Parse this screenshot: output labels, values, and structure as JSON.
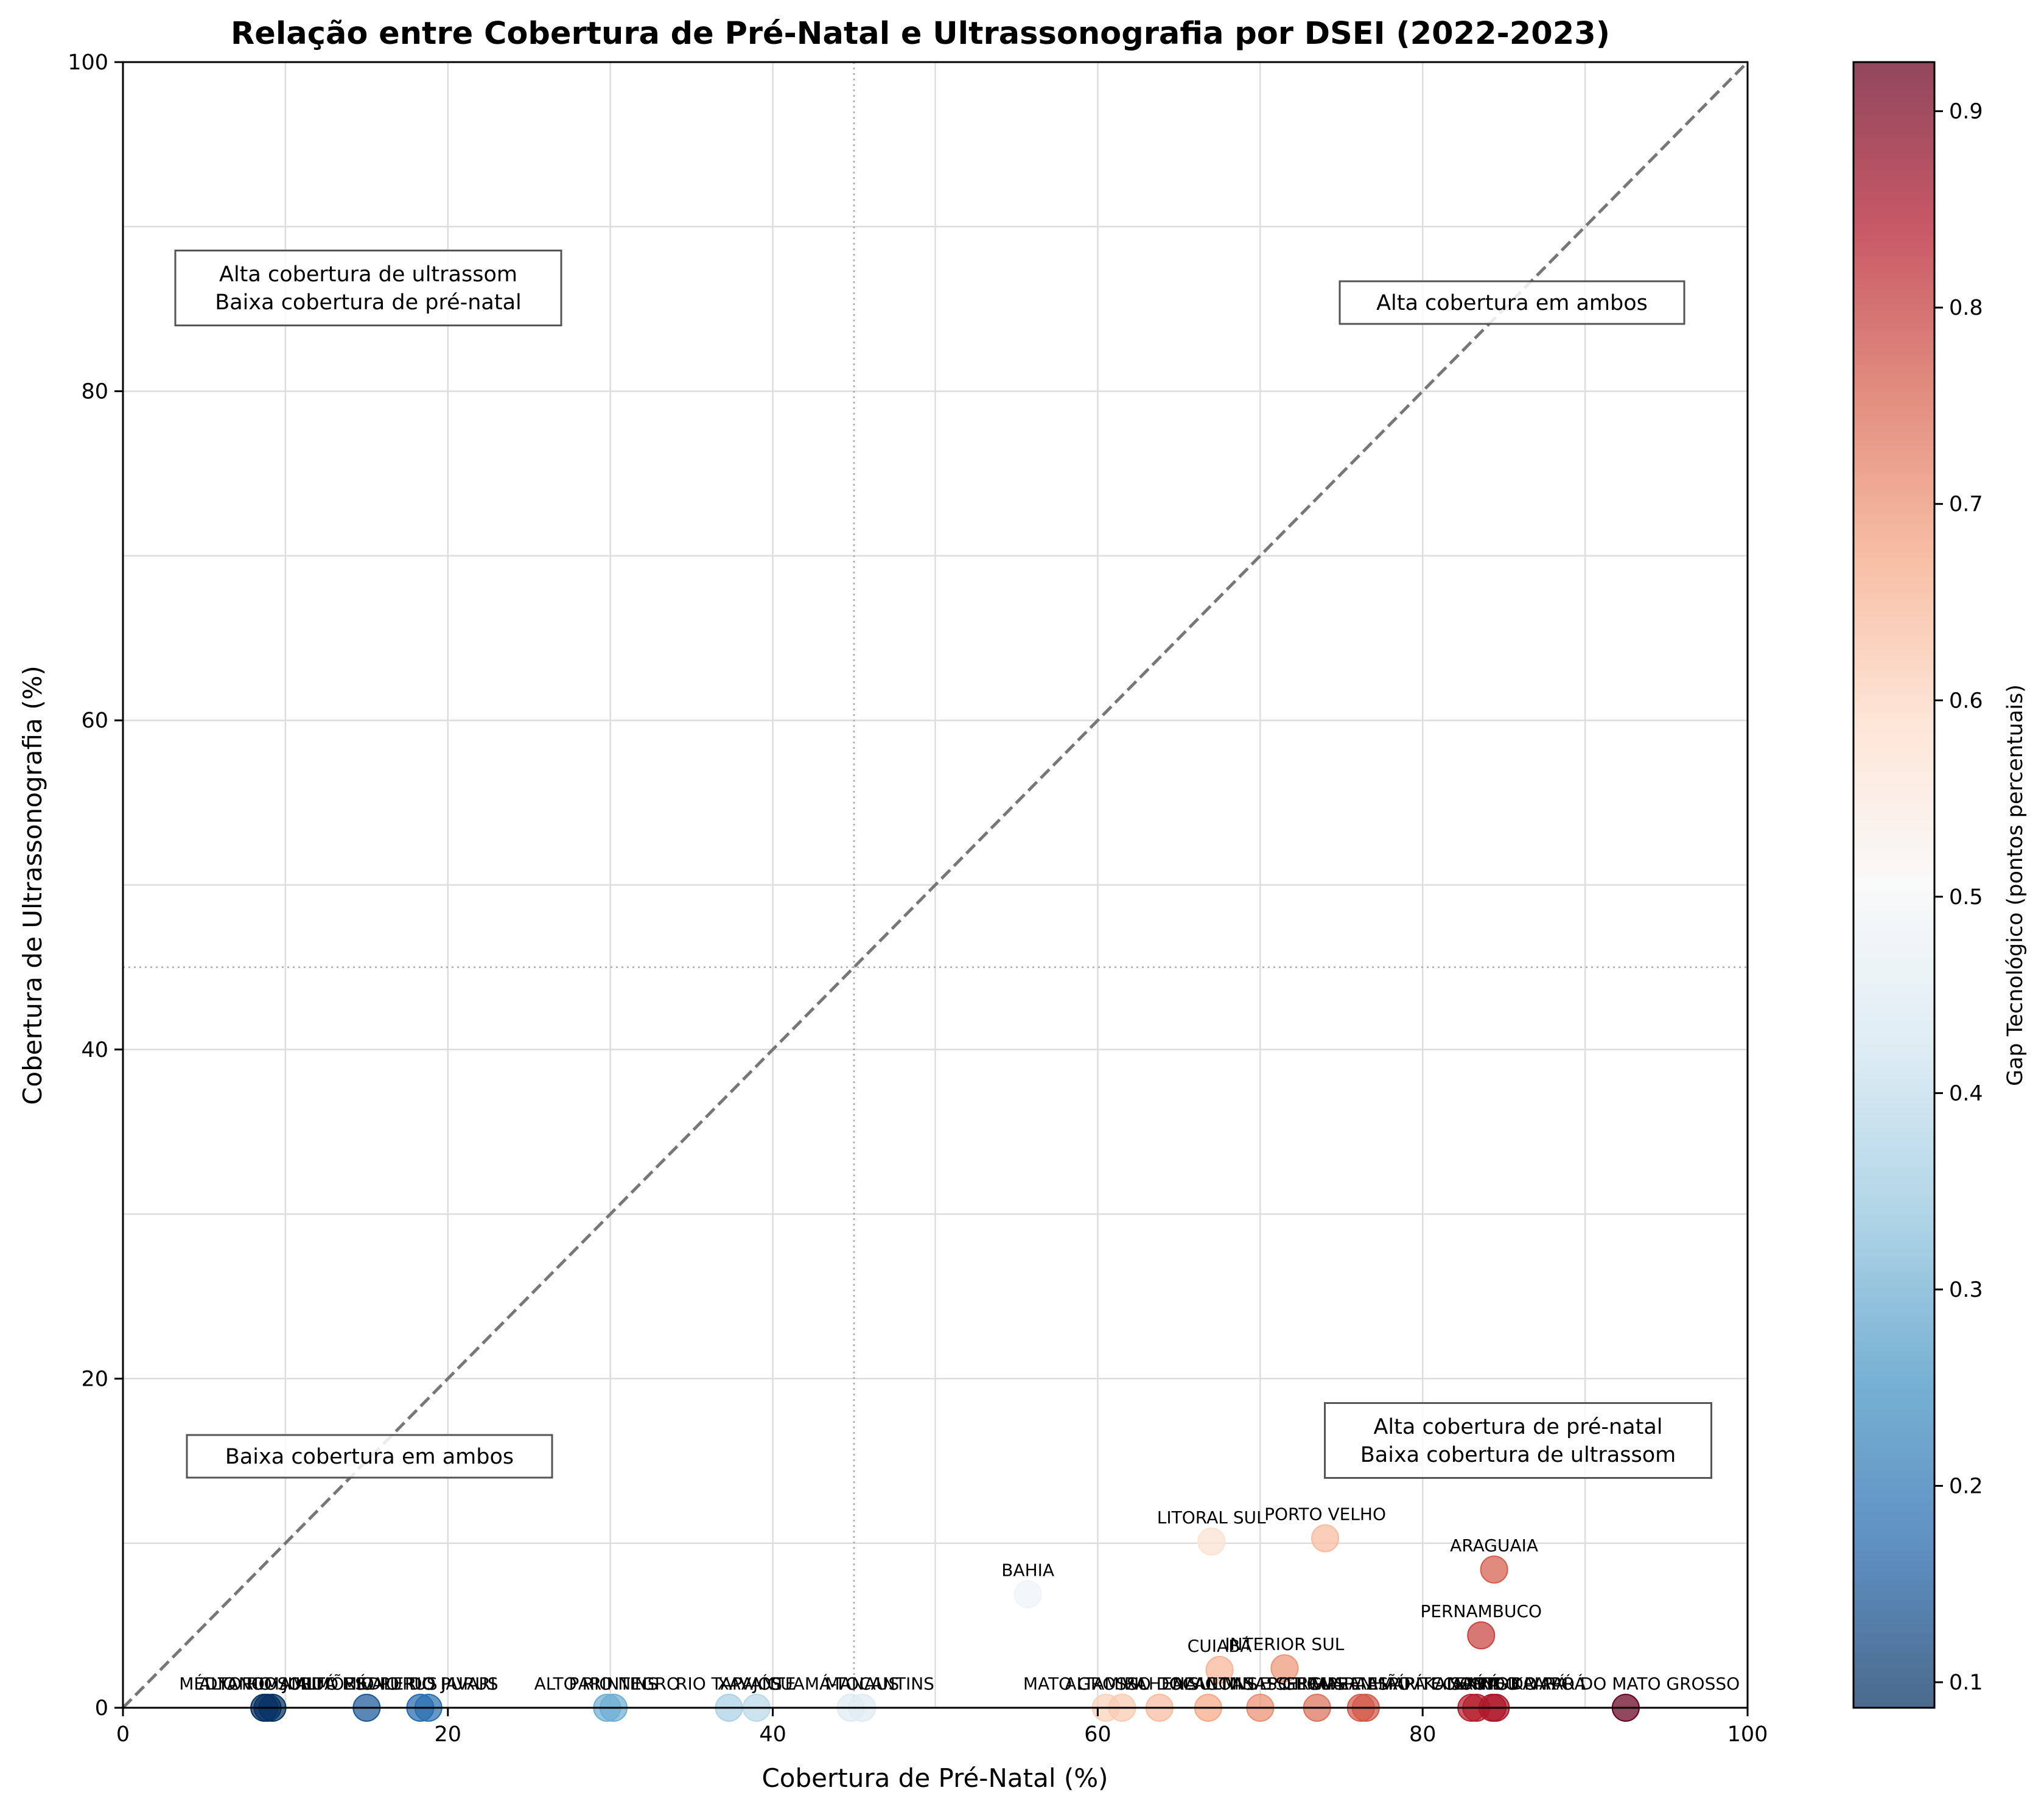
{
  "chart_data": {
    "type": "scatter",
    "title": "Relação entre Cobertura de Pré-Natal e Ultrassonografia por DSEI (2022-2023)",
    "xlabel": "Cobertura de Pré-Natal (%)",
    "ylabel": "Cobertura de Ultrassonografia (%)",
    "xlim": [
      0,
      100
    ],
    "ylim": [
      0,
      100
    ],
    "xticks": [
      "0",
      "20",
      "40",
      "60",
      "80",
      "100"
    ],
    "yticks": [
      "0",
      "20",
      "40",
      "60",
      "80",
      "100"
    ],
    "grid": true,
    "reference_lines": {
      "diagonal": "y = x",
      "vertical_x": 45,
      "horizontal_y": 45
    },
    "quadrant_annotations": [
      {
        "id": "top-left",
        "lines": [
          "Alta cobertura de ultrassom",
          "Baixa cobertura de pré-natal"
        ]
      },
      {
        "id": "top-right",
        "lines": [
          "Alta cobertura em ambos"
        ]
      },
      {
        "id": "bottom-left",
        "lines": [
          "Baixa cobertura em ambos"
        ]
      },
      {
        "id": "bottom-right",
        "lines": [
          "Alta cobertura de pré-natal",
          "Baixa cobertura de ultrassom"
        ]
      }
    ],
    "colorbar": {
      "label": "Gap Tecnológico (pontos percentuais)",
      "min": 0.087,
      "max": 0.925,
      "ticks": [
        "0.1",
        "0.2",
        "0.3",
        "0.4",
        "0.5",
        "0.6",
        "0.7",
        "0.8",
        "0.9"
      ],
      "colormap": "RdBu_r"
    },
    "points": [
      {
        "label": "YANOMAMI",
        "x": 8.7,
        "y": 0.0,
        "gap": 0.09
      },
      {
        "label": "ALTO RIO JURUÁ",
        "x": 8.9,
        "y": 0.0,
        "gap": 0.09
      },
      {
        "label": "MÉDIO RIO SOLIMÕES",
        "x": 9.2,
        "y": 0.0,
        "gap": 0.09
      },
      {
        "label": "ALTO RIO PURUS",
        "x": 15.0,
        "y": 0.0,
        "gap": 0.15
      },
      {
        "label": "MÉDIO RIO PURUS",
        "x": 18.3,
        "y": 0.0,
        "gap": 0.18
      },
      {
        "label": "VALE DO JAVARI",
        "x": 18.8,
        "y": 0.0,
        "gap": 0.19
      },
      {
        "label": "ALTO RIO NEGRO",
        "x": 29.8,
        "y": 0.0,
        "gap": 0.3
      },
      {
        "label": "PARINTINS",
        "x": 30.2,
        "y": 0.0,
        "gap": 0.3
      },
      {
        "label": "RIO TAPAJÓS",
        "x": 37.3,
        "y": 0.0,
        "gap": 0.37
      },
      {
        "label": "XAVANTE",
        "x": 39.0,
        "y": 0.0,
        "gap": 0.39
      },
      {
        "label": "GUAMÁ-TOCANTINS",
        "x": 44.8,
        "y": 0.0,
        "gap": 0.45
      },
      {
        "label": "MANAUS",
        "x": 45.5,
        "y": 0.0,
        "gap": 0.455
      },
      {
        "label": "BAHIA",
        "x": 55.7,
        "y": 6.9,
        "gap": 0.49
      },
      {
        "label": "ALTAMIRA",
        "x": 60.5,
        "y": 0.0,
        "gap": 0.605
      },
      {
        "label": "MATO GROSSO DO SUL",
        "x": 61.5,
        "y": 0.0,
        "gap": 0.615
      },
      {
        "label": "VILHENA",
        "x": 63.8,
        "y": 0.0,
        "gap": 0.64
      },
      {
        "label": "LITORAL SUL",
        "x": 67.0,
        "y": 10.1,
        "gap": 0.57
      },
      {
        "label": "CUIABÁ",
        "x": 67.5,
        "y": 2.3,
        "gap": 0.65
      },
      {
        "label": "TOCANTINS",
        "x": 66.8,
        "y": 0.0,
        "gap": 0.668
      },
      {
        "label": "ALAGOAS E SERGIPE",
        "x": 70.0,
        "y": 0.0,
        "gap": 0.7
      },
      {
        "label": "INTERIOR SUL",
        "x": 71.5,
        "y": 2.4,
        "gap": 0.69
      },
      {
        "label": "PORTO VELHO",
        "x": 74.0,
        "y": 10.3,
        "gap": 0.64
      },
      {
        "label": "POTIGUARA",
        "x": 73.5,
        "y": 0.0,
        "gap": 0.735
      },
      {
        "label": "MARANHÃO",
        "x": 76.2,
        "y": 0.0,
        "gap": 0.76
      },
      {
        "label": "MINAS GERAIS E ESPÍRITO SANTO",
        "x": 76.5,
        "y": 0.0,
        "gap": 0.765
      },
      {
        "label": "PERNAMBUCO",
        "x": 83.6,
        "y": 4.4,
        "gap": 0.79
      },
      {
        "label": "ARAGUAIA",
        "x": 84.4,
        "y": 8.4,
        "gap": 0.76
      },
      {
        "label": "CEARÁ",
        "x": 83.0,
        "y": 0.0,
        "gap": 0.83
      },
      {
        "label": "AMAPÁ E NORTE DO PARÁ",
        "x": 83.3,
        "y": 0.0,
        "gap": 0.833
      },
      {
        "label": "XINGU",
        "x": 84.3,
        "y": 0.0,
        "gap": 0.843
      },
      {
        "label": "KAIAPÓ DO PARÁ",
        "x": 84.5,
        "y": 0.0,
        "gap": 0.845
      },
      {
        "label": "KAIAPÓ DO MATO GROSSO",
        "x": 92.5,
        "y": 0.0,
        "gap": 0.925
      }
    ]
  }
}
